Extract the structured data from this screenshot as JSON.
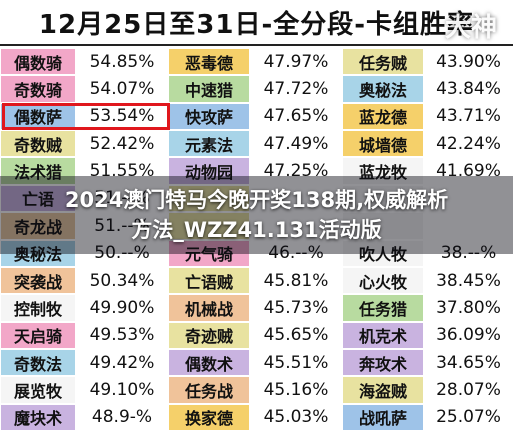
{
  "title": "12月25日至31日-全分段-卡组胜率",
  "watermark": "大神",
  "headline": {
    "line1": "2024澳门特马今晚开奖138期,权威解析",
    "line2": "方法_WZZ41.131活动版"
  },
  "columns": [
    {
      "rows": [
        {
          "name": "偶数骑",
          "value": "54.85%",
          "color": "#f2a7c8"
        },
        {
          "name": "奇数骑",
          "value": "54.07%",
          "color": "#f2a7c8"
        },
        {
          "name": "偶数萨",
          "value": "53.54%",
          "color": "#9ec3e8"
        },
        {
          "name": "奇数贼",
          "value": "52.42%",
          "color": "#e8e2a0"
        },
        {
          "name": "法术猎",
          "value": "51.55%",
          "color": "#b8dba0"
        },
        {
          "name": "亡语",
          "value": "51.--%",
          "color": "#c9b3e0"
        },
        {
          "name": "奇龙战",
          "value": "51.--%",
          "color": "#e8c9a0"
        },
        {
          "name": "奥秘法",
          "value": "50.--%",
          "color": "#a8d4e8"
        },
        {
          "name": "突袭战",
          "value": "50.34%",
          "color": "#f0c39a"
        },
        {
          "name": "控制牧",
          "value": "49.90%",
          "color": "#f5f5f5"
        },
        {
          "name": "天启骑",
          "value": "49.53%",
          "color": "#f2a7c8"
        },
        {
          "name": "奇数法",
          "value": "49.42%",
          "color": "#a8d4e8"
        },
        {
          "name": "展览牧",
          "value": "49.10%",
          "color": "#f5f5f5"
        },
        {
          "name": "魔块术",
          "value": "48.9-%",
          "color": "#c9b3e0"
        }
      ]
    },
    {
      "rows": [
        {
          "name": "恶毒德",
          "value": "47.97%",
          "color": "#f5d06a"
        },
        {
          "name": "中速猎",
          "value": "47.72%",
          "color": "#b8dba0"
        },
        {
          "name": "快攻萨",
          "value": "47.65%",
          "color": "#9ec3e8"
        },
        {
          "name": "元素法",
          "value": "47.49%",
          "color": "#a8d4e8"
        },
        {
          "name": "动物园",
          "value": "47.25%",
          "color": "#c9b3e0"
        },
        {
          "name": "",
          "value": "",
          "color": "#e8e2a0"
        },
        {
          "name": "",
          "value": "",
          "color": "#e8e2a0"
        },
        {
          "name": "元气骑",
          "value": "46.--%",
          "color": "#f2a7c8"
        },
        {
          "name": "亡语贼",
          "value": "45.81%",
          "color": "#e8e2a0"
        },
        {
          "name": "机械战",
          "value": "45.73%",
          "color": "#f0c39a"
        },
        {
          "name": "奇迹贼",
          "value": "45.65%",
          "color": "#e8e2a0"
        },
        {
          "name": "偶数术",
          "value": "45.51%",
          "color": "#c9b3e0"
        },
        {
          "name": "任务战",
          "value": "45.16%",
          "color": "#f0c39a"
        },
        {
          "name": "换家德",
          "value": "45.03%",
          "color": "#f5d06a"
        }
      ]
    },
    {
      "rows": [
        {
          "name": "任务贼",
          "value": "43.90%",
          "color": "#e8e2a0"
        },
        {
          "name": "奥秘法",
          "value": "43.84%",
          "color": "#a8d4e8"
        },
        {
          "name": "蓝龙德",
          "value": "43.71%",
          "color": "#f5d06a"
        },
        {
          "name": "城墙德",
          "value": "42.24%",
          "color": "#f5d06a"
        },
        {
          "name": "蓝龙牧",
          "value": "41.69%",
          "color": "#f5f5f5"
        },
        {
          "name": "",
          "value": "",
          "color": "#f5f5f5"
        },
        {
          "name": "",
          "value": "",
          "color": "#f5f5f5"
        },
        {
          "name": "吹人牧",
          "value": "38.--%",
          "color": "#f5f5f5"
        },
        {
          "name": "心火牧",
          "value": "38.45%",
          "color": "#f5f5f5"
        },
        {
          "name": "任务猎",
          "value": "37.80%",
          "color": "#b8dba0"
        },
        {
          "name": "机克术",
          "value": "36.09%",
          "color": "#c9b3e0"
        },
        {
          "name": "奔攻术",
          "value": "34.65%",
          "color": "#c9b3e0"
        },
        {
          "name": "海盗贼",
          "value": "28.07%",
          "color": "#e8e2a0"
        },
        {
          "name": "战吼萨",
          "value": "25.07%",
          "color": "#9ec3e8"
        }
      ]
    }
  ]
}
